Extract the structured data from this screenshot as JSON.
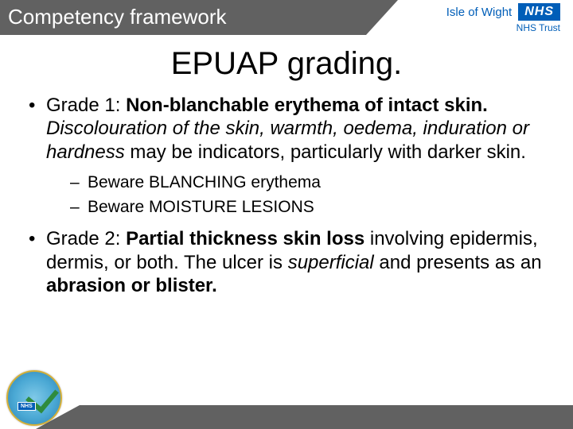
{
  "header": {
    "title": "Competency framework",
    "org": "Isle of Wight",
    "nhs": "NHS",
    "trust": "NHS Trust"
  },
  "slide": {
    "title": "EPUAP grading."
  },
  "bullets": {
    "g1_prefix": "Grade 1: ",
    "g1_bold": "Non-blanchable erythema of intact skin.",
    "g1_italic": " Discolouration of the skin, warmth, oedema, induration or hardness",
    "g1_rest": " may be indicators, particularly with darker skin.",
    "g1_sub1": "Beware BLANCHING erythema",
    "g1_sub2": "Beware MOISTURE LESIONS",
    "g2_prefix": "Grade 2: ",
    "g2_bold1": "Partial thickness skin loss",
    "g2_mid1": " involving epidermis, dermis, or both. The ulcer is ",
    "g2_italic": "superficial",
    "g2_mid2": " and presents as an ",
    "g2_bold2": "abrasion or blister."
  },
  "badge": {
    "nhs": "NHS"
  }
}
